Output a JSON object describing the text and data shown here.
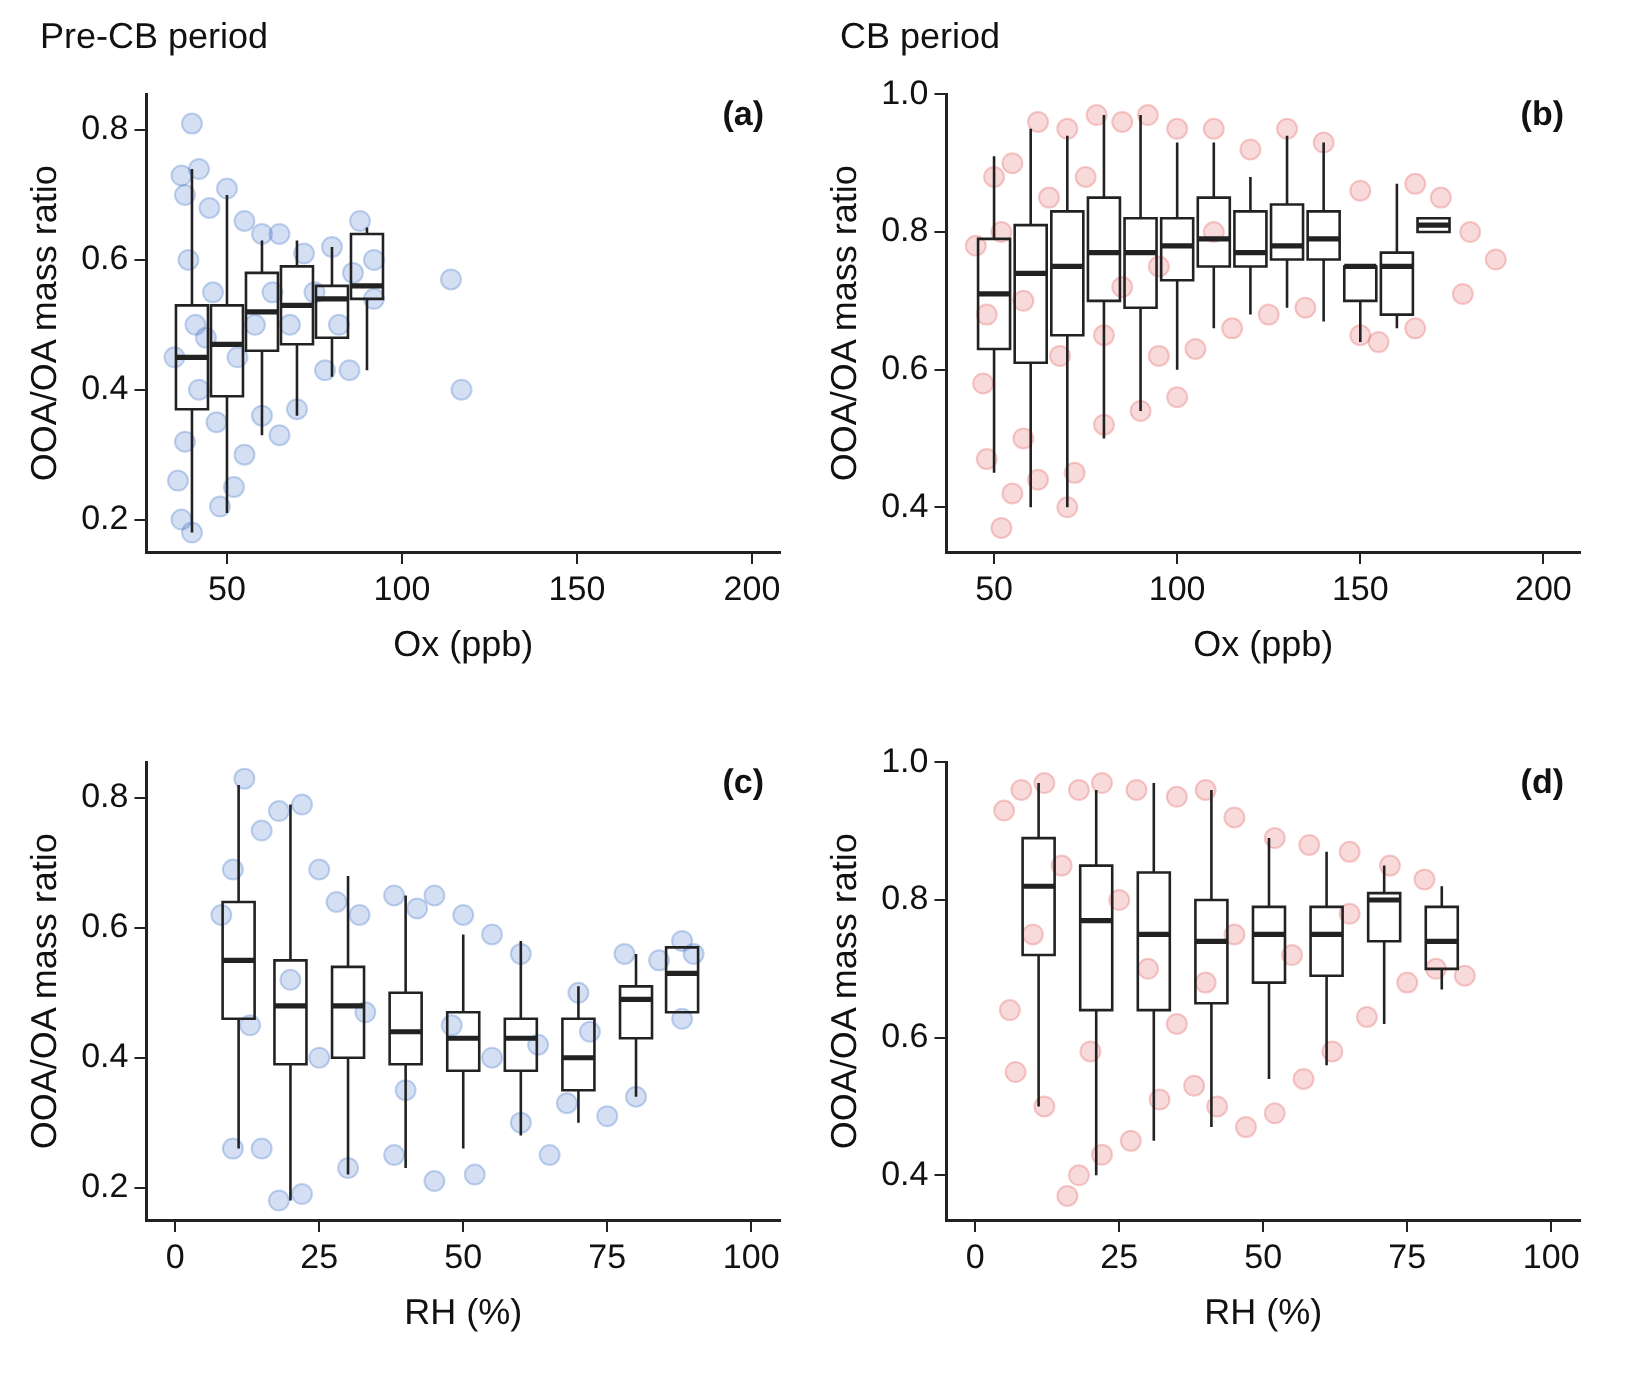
{
  "chart_data": [
    {
      "type": "box",
      "title": "Pre-CB period",
      "xlabel": "Ox (ppb)",
      "ylabel": "OOA/OA mass ratio",
      "annotations": [
        "(a)"
      ],
      "xlim": [
        27,
        208
      ],
      "xticks": [
        50,
        100,
        150,
        200
      ],
      "ylim": [
        0.15,
        0.855
      ],
      "yticks": [
        0.2,
        0.4,
        0.6,
        0.8
      ],
      "grid": false,
      "legend": false,
      "series": [
        {
          "type": "scatter",
          "color": "#3b6fc8",
          "x": [
            40,
            37,
            42,
            38,
            45,
            50,
            55,
            60,
            65,
            72,
            80,
            88,
            92,
            114,
            117,
            92,
            85,
            78,
            70,
            65,
            60,
            55,
            52,
            48,
            40,
            37,
            36,
            38,
            42,
            44,
            46,
            39,
            41,
            35,
            47,
            53,
            58,
            63,
            68,
            75,
            82,
            86
          ],
          "values": [
            0.81,
            0.73,
            0.74,
            0.7,
            0.68,
            0.71,
            0.66,
            0.64,
            0.64,
            0.61,
            0.62,
            0.66,
            0.6,
            0.57,
            0.4,
            0.54,
            0.43,
            0.43,
            0.37,
            0.33,
            0.36,
            0.3,
            0.25,
            0.22,
            0.18,
            0.2,
            0.26,
            0.32,
            0.4,
            0.48,
            0.55,
            0.6,
            0.5,
            0.45,
            0.35,
            0.45,
            0.5,
            0.55,
            0.5,
            0.55,
            0.5,
            0.58
          ]
        },
        {
          "type": "box",
          "color": "#222222",
          "x": [
            40,
            50,
            60,
            70,
            80,
            90
          ],
          "boxes": [
            {
              "low": 0.18,
              "q1": 0.37,
              "median": 0.45,
              "q3": 0.53,
              "high": 0.74
            },
            {
              "low": 0.21,
              "q1": 0.39,
              "median": 0.47,
              "q3": 0.53,
              "high": 0.7
            },
            {
              "low": 0.33,
              "q1": 0.46,
              "median": 0.52,
              "q3": 0.58,
              "high": 0.63
            },
            {
              "low": 0.36,
              "q1": 0.47,
              "median": 0.53,
              "q3": 0.59,
              "high": 0.63
            },
            {
              "low": 0.42,
              "q1": 0.48,
              "median": 0.54,
              "q3": 0.56,
              "high": 0.62
            },
            {
              "low": 0.43,
              "q1": 0.54,
              "median": 0.56,
              "q3": 0.64,
              "high": 0.65
            }
          ]
        }
      ]
    },
    {
      "type": "box",
      "title": "CB period",
      "xlabel": "Ox (ppb)",
      "ylabel": "OOA/OA mass ratio",
      "annotations": [
        "(b)"
      ],
      "xlim": [
        37,
        210
      ],
      "xticks": [
        50,
        100,
        150,
        200
      ],
      "ylim": [
        0.335,
        1.0
      ],
      "yticks": [
        {
          "value": 0.4,
          "label": "0.4"
        },
        {
          "value": 0.6,
          "label": "0.6"
        },
        {
          "value": 0.8,
          "label": "0.8"
        },
        {
          "value": 1.0,
          "label": "1.0"
        }
      ],
      "grid": false,
      "legend": false,
      "series": [
        {
          "type": "scatter",
          "color": "#e05555",
          "x": [
            45,
            48,
            47,
            48,
            52,
            55,
            58,
            62,
            70,
            72,
            80,
            90,
            100,
            95,
            105,
            115,
            125,
            135,
            150,
            155,
            165,
            178,
            187,
            180,
            172,
            165,
            150,
            140,
            130,
            120,
            110,
            100,
            92,
            85,
            78,
            70,
            62,
            55,
            50,
            52,
            65,
            75,
            85,
            95,
            110,
            58,
            68,
            80
          ],
          "values": [
            0.78,
            0.68,
            0.58,
            0.47,
            0.37,
            0.42,
            0.5,
            0.44,
            0.4,
            0.45,
            0.52,
            0.54,
            0.56,
            0.62,
            0.63,
            0.66,
            0.68,
            0.69,
            0.65,
            0.64,
            0.66,
            0.71,
            0.76,
            0.8,
            0.85,
            0.87,
            0.86,
            0.93,
            0.95,
            0.92,
            0.95,
            0.95,
            0.97,
            0.96,
            0.97,
            0.95,
            0.96,
            0.9,
            0.88,
            0.8,
            0.85,
            0.88,
            0.72,
            0.75,
            0.8,
            0.7,
            0.62,
            0.65
          ]
        },
        {
          "type": "box",
          "color": "#222222",
          "x": [
            50,
            60,
            70,
            80,
            90,
            100,
            110,
            120,
            130,
            140,
            150,
            160,
            170
          ],
          "boxes": [
            {
              "low": 0.45,
              "q1": 0.63,
              "median": 0.71,
              "q3": 0.79,
              "high": 0.91
            },
            {
              "low": 0.4,
              "q1": 0.61,
              "median": 0.74,
              "q3": 0.81,
              "high": 0.95
            },
            {
              "low": 0.4,
              "q1": 0.65,
              "median": 0.75,
              "q3": 0.83,
              "high": 0.94
            },
            {
              "low": 0.5,
              "q1": 0.7,
              "median": 0.77,
              "q3": 0.85,
              "high": 0.97
            },
            {
              "low": 0.54,
              "q1": 0.69,
              "median": 0.77,
              "q3": 0.82,
              "high": 0.97
            },
            {
              "low": 0.6,
              "q1": 0.73,
              "median": 0.78,
              "q3": 0.82,
              "high": 0.93
            },
            {
              "low": 0.66,
              "q1": 0.75,
              "median": 0.79,
              "q3": 0.85,
              "high": 0.93
            },
            {
              "low": 0.68,
              "q1": 0.75,
              "median": 0.77,
              "q3": 0.83,
              "high": 0.88
            },
            {
              "low": 0.69,
              "q1": 0.76,
              "median": 0.78,
              "q3": 0.84,
              "high": 0.94
            },
            {
              "low": 0.67,
              "q1": 0.76,
              "median": 0.79,
              "q3": 0.83,
              "high": 0.93
            },
            {
              "low": 0.64,
              "q1": 0.7,
              "median": 0.75,
              "q3": 0.75,
              "high": 0.75
            },
            {
              "low": 0.66,
              "q1": 0.68,
              "median": 0.75,
              "q3": 0.77,
              "high": 0.87
            },
            {
              "low": 0.8,
              "q1": 0.8,
              "median": 0.81,
              "q3": 0.82,
              "high": 0.82
            }
          ]
        }
      ]
    },
    {
      "type": "box",
      "xlabel": "RH (%)",
      "ylabel": "OOA/OA mass ratio",
      "annotations": [
        "(c)"
      ],
      "xlim": [
        -5,
        105
      ],
      "xticks": [
        0,
        25,
        50,
        75,
        100
      ],
      "ylim": [
        0.15,
        0.855
      ],
      "yticks": [
        0.2,
        0.4,
        0.6,
        0.8
      ],
      "grid": false,
      "legend": false,
      "series": [
        {
          "type": "scatter",
          "color": "#3b6fc8",
          "x": [
            8,
            10,
            12,
            15,
            18,
            22,
            25,
            28,
            32,
            38,
            42,
            45,
            50,
            55,
            60,
            70,
            78,
            84,
            88,
            90,
            88,
            80,
            75,
            68,
            65,
            60,
            52,
            45,
            38,
            30,
            22,
            18,
            15,
            10,
            13,
            20,
            25,
            33,
            40,
            48,
            55,
            63,
            72
          ],
          "values": [
            0.62,
            0.69,
            0.83,
            0.75,
            0.78,
            0.79,
            0.69,
            0.64,
            0.62,
            0.65,
            0.63,
            0.65,
            0.62,
            0.59,
            0.56,
            0.5,
            0.56,
            0.55,
            0.58,
            0.56,
            0.46,
            0.34,
            0.31,
            0.33,
            0.25,
            0.3,
            0.22,
            0.21,
            0.25,
            0.23,
            0.19,
            0.18,
            0.26,
            0.26,
            0.45,
            0.52,
            0.4,
            0.47,
            0.35,
            0.45,
            0.4,
            0.42,
            0.44
          ]
        },
        {
          "type": "box",
          "color": "#222222",
          "x": [
            11,
            20,
            30,
            40,
            50,
            60,
            70,
            80,
            88
          ],
          "boxes": [
            {
              "low": 0.26,
              "q1": 0.46,
              "median": 0.55,
              "q3": 0.64,
              "high": 0.82
            },
            {
              "low": 0.18,
              "q1": 0.39,
              "median": 0.48,
              "q3": 0.55,
              "high": 0.79
            },
            {
              "low": 0.22,
              "q1": 0.4,
              "median": 0.48,
              "q3": 0.54,
              "high": 0.68
            },
            {
              "low": 0.23,
              "q1": 0.39,
              "median": 0.44,
              "q3": 0.5,
              "high": 0.65
            },
            {
              "low": 0.26,
              "q1": 0.38,
              "median": 0.43,
              "q3": 0.47,
              "high": 0.59
            },
            {
              "low": 0.28,
              "q1": 0.38,
              "median": 0.43,
              "q3": 0.46,
              "high": 0.58
            },
            {
              "low": 0.3,
              "q1": 0.35,
              "median": 0.4,
              "q3": 0.46,
              "high": 0.51
            },
            {
              "low": 0.34,
              "q1": 0.43,
              "median": 0.49,
              "q3": 0.51,
              "high": 0.56
            },
            {
              "low": 0.47,
              "q1": 0.47,
              "median": 0.53,
              "q3": 0.57,
              "high": 0.57
            }
          ]
        }
      ]
    },
    {
      "type": "box",
      "xlabel": "RH (%)",
      "ylabel": "OOA/OA mass ratio",
      "annotations": [
        "(d)"
      ],
      "xlim": [
        -5,
        105
      ],
      "xticks": [
        0,
        25,
        50,
        75,
        100
      ],
      "ylim": [
        0.335,
        1.0
      ],
      "yticks": [
        {
          "value": 0.4,
          "label": "0.4"
        },
        {
          "value": 0.6,
          "label": "0.6"
        },
        {
          "value": 0.8,
          "label": "0.8"
        },
        {
          "value": 1.0,
          "label": "1.0"
        }
      ],
      "grid": false,
      "legend": false,
      "series": [
        {
          "type": "scatter",
          "color": "#e05555",
          "x": [
            5,
            8,
            12,
            18,
            22,
            28,
            35,
            40,
            45,
            52,
            58,
            65,
            72,
            78,
            85,
            80,
            75,
            68,
            62,
            57,
            52,
            47,
            42,
            38,
            32,
            27,
            22,
            18,
            16,
            12,
            7,
            6,
            10,
            15,
            25,
            30,
            35,
            45,
            55,
            65,
            20,
            40
          ],
          "values": [
            0.93,
            0.96,
            0.97,
            0.96,
            0.97,
            0.96,
            0.95,
            0.96,
            0.92,
            0.89,
            0.88,
            0.87,
            0.85,
            0.83,
            0.69,
            0.7,
            0.68,
            0.63,
            0.58,
            0.54,
            0.49,
            0.47,
            0.5,
            0.53,
            0.51,
            0.45,
            0.43,
            0.4,
            0.37,
            0.5,
            0.55,
            0.64,
            0.75,
            0.85,
            0.8,
            0.7,
            0.62,
            0.75,
            0.72,
            0.78,
            0.58,
            0.68
          ]
        },
        {
          "type": "box",
          "color": "#222222",
          "x": [
            11,
            21,
            31,
            41,
            51,
            61,
            71,
            81
          ],
          "boxes": [
            {
              "low": 0.5,
              "q1": 0.72,
              "median": 0.82,
              "q3": 0.89,
              "high": 0.97
            },
            {
              "low": 0.4,
              "q1": 0.64,
              "median": 0.77,
              "q3": 0.85,
              "high": 0.96
            },
            {
              "low": 0.45,
              "q1": 0.64,
              "median": 0.75,
              "q3": 0.84,
              "high": 0.97
            },
            {
              "low": 0.47,
              "q1": 0.65,
              "median": 0.74,
              "q3": 0.8,
              "high": 0.96
            },
            {
              "low": 0.54,
              "q1": 0.68,
              "median": 0.75,
              "q3": 0.79,
              "high": 0.89
            },
            {
              "low": 0.56,
              "q1": 0.69,
              "median": 0.75,
              "q3": 0.79,
              "high": 0.87
            },
            {
              "low": 0.62,
              "q1": 0.74,
              "median": 0.8,
              "q3": 0.81,
              "high": 0.85
            },
            {
              "low": 0.67,
              "q1": 0.7,
              "median": 0.74,
              "q3": 0.79,
              "high": 0.82
            }
          ]
        }
      ]
    }
  ]
}
